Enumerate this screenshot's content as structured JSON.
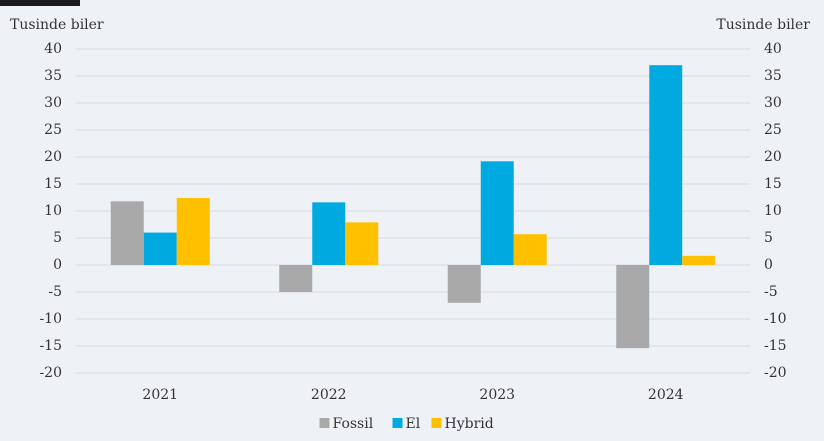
{
  "chart_data": {
    "type": "bar",
    "y_label": "Tusinde biler",
    "y2_label": "Tusinde biler",
    "categories": [
      "2021",
      "2022",
      "2023",
      "2024"
    ],
    "series": [
      {
        "name": "Fossil",
        "color": "#a9a9a9",
        "values": [
          11.8,
          -5,
          -7,
          -15.4
        ]
      },
      {
        "name": "El",
        "color": "#00a9e0",
        "values": [
          6,
          11.6,
          19.2,
          37
        ]
      },
      {
        "name": "Hybrid",
        "color": "#ffc000",
        "values": [
          12.4,
          7.9,
          5.7,
          1.7
        ]
      }
    ],
    "ylim": [
      -20,
      40
    ],
    "yticks": [
      -20,
      -15,
      -10,
      -5,
      0,
      5,
      10,
      15,
      20,
      25,
      30,
      35,
      40
    ],
    "y2lim": [
      -20,
      40
    ],
    "y2ticks": [
      -20,
      -15,
      -10,
      -5,
      0,
      5,
      10,
      15,
      20,
      25,
      30,
      35,
      40
    ],
    "grid": true,
    "legend": "bottom"
  }
}
